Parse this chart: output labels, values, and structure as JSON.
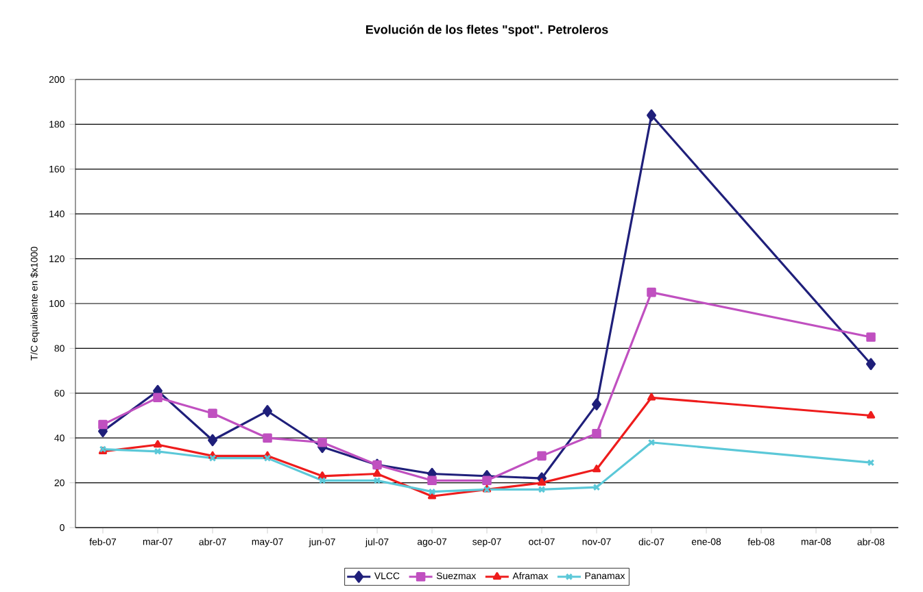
{
  "chart_data": {
    "type": "line",
    "title": "Evolución de los fletes \"spot\". Petroleros",
    "ylabel": "T/C equivalente en $x1000",
    "categories": [
      "feb-07",
      "mar-07",
      "abr-07",
      "may-07",
      "jun-07",
      "jul-07",
      "ago-07",
      "sep-07",
      "oct-07",
      "nov-07",
      "dic-07",
      "ene-08",
      "feb-08",
      "mar-08",
      "abr-08"
    ],
    "series": [
      {
        "name": "VLCC",
        "color": "#1f1f7a",
        "marker": "diamond",
        "values": [
          43,
          61,
          39,
          52,
          36,
          28,
          24,
          23,
          22,
          55,
          184,
          null,
          null,
          null,
          73
        ]
      },
      {
        "name": "Suezmax",
        "color": "#c050c0",
        "marker": "square",
        "values": [
          46,
          58,
          51,
          40,
          38,
          28,
          21,
          21,
          32,
          42,
          105,
          null,
          null,
          null,
          85
        ]
      },
      {
        "name": "Aframax",
        "color": "#ee1c1c",
        "marker": "triangle",
        "values": [
          34,
          37,
          32,
          32,
          23,
          24,
          14,
          17,
          20,
          26,
          58,
          null,
          null,
          null,
          50
        ]
      },
      {
        "name": "Panamax",
        "color": "#5bc8d8",
        "marker": "cross",
        "values": [
          35,
          34,
          31,
          31,
          21,
          21,
          16,
          17,
          17,
          18,
          38,
          null,
          null,
          null,
          29
        ]
      }
    ],
    "ylim": [
      0,
      200
    ],
    "yticks": [
      0,
      20,
      40,
      60,
      80,
      100,
      120,
      140,
      160,
      180,
      200
    ],
    "grid": "y",
    "legend": "bottom"
  }
}
